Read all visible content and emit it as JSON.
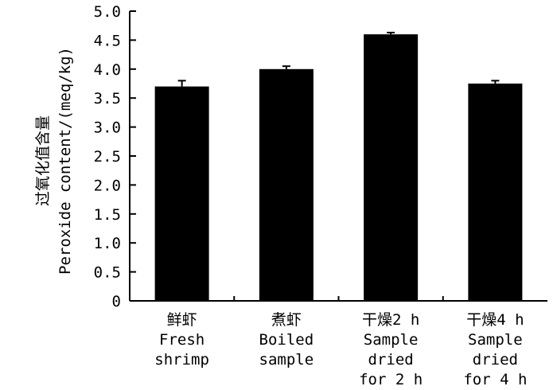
{
  "chart_data": {
    "type": "bar",
    "categories": [
      [
        "鲜虾",
        "Fresh",
        "shrimp"
      ],
      [
        "煮虾",
        "Boiled",
        "sample"
      ],
      [
        "干燥2 h",
        "Sample",
        "dried",
        "for 2 h"
      ],
      [
        "干燥4 h",
        "Sample",
        "dried",
        "for 4 h"
      ]
    ],
    "values": [
      3.7,
      4.0,
      4.6,
      3.75
    ],
    "errors": [
      0.1,
      0.05,
      0.03,
      0.05
    ],
    "ylabel_cn": "过氧化值含量",
    "ylabel_en": "Peroxide content/(meq/kg)",
    "ylim": [
      0,
      5.0
    ],
    "yticks": [
      "0",
      "0.5",
      "1.0",
      "1.5",
      "2.0",
      "2.5",
      "3.0",
      "3.5",
      "4.0",
      "4.5",
      "5.0"
    ],
    "bar_color": "#000000",
    "grid": false
  }
}
